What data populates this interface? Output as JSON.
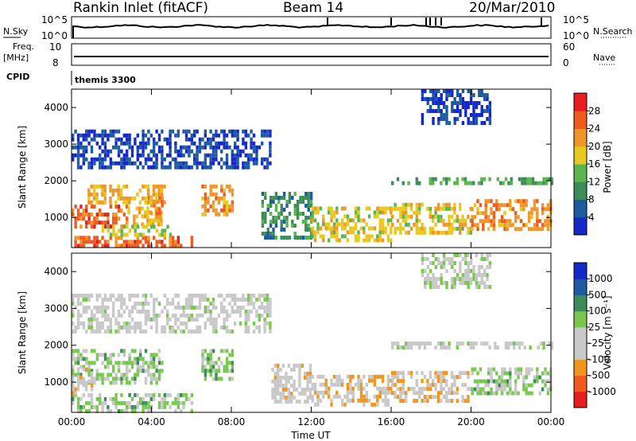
{
  "header": {
    "station": "Rankin Inlet (fitACF)",
    "beam": "Beam 14",
    "date": "20/Mar/2010"
  },
  "panels": {
    "nsky_label": "N.Sky",
    "nsearch_label": "N.Search",
    "nsky_ticks": [
      "10^5",
      "10^0"
    ],
    "nsearch_ticks": [
      "10^5",
      "10^0"
    ],
    "freq_label": "Freq.",
    "freq_unit": "[MHz]",
    "freq_ticks": [
      "10",
      "8"
    ],
    "nave_label": "Nave",
    "nave_ticks": [
      "60",
      "0"
    ],
    "cpid_label": "CPID",
    "cpid_value": "themis 3300"
  },
  "colors": {
    "power_scale": [
      "#1428c8",
      "#1e5aa0",
      "#3c8c5a",
      "#5ab450",
      "#e6c81e",
      "#f09628",
      "#f05a1e",
      "#e61e1e"
    ],
    "velocity_scale": [
      "#e61e1e",
      "#f05a1e",
      "#f0961e",
      "#c8c8c8",
      "#c8c8c8",
      "#78c850",
      "#3c8c5a",
      "#1e5aa0",
      "#1428c8"
    ]
  },
  "chart_data": [
    {
      "type": "heatmap",
      "title": "Power",
      "ylabel": "Slant Range [km]",
      "xlabel": "",
      "x_ticks": [
        "00:00",
        "04:00",
        "08:00",
        "12:00",
        "16:00",
        "20:00",
        "00:00"
      ],
      "y_ticks": [
        "1000",
        "2000",
        "3000",
        "4000"
      ],
      "ylim": [
        180,
        4500
      ],
      "xlim_hours": [
        0,
        24
      ],
      "colorbar_label": "Power [dB]",
      "colorbar_ticks": [
        "4",
        "8",
        "12",
        "16",
        "20",
        "24",
        "28"
      ],
      "colorbar_range": [
        0,
        32
      ],
      "regions": [
        {
          "t": [
            0.0,
            2.8
          ],
          "r": [
            700,
            1350
          ],
          "value": 26
        },
        {
          "t": [
            2.8,
            4.5
          ],
          "r": [
            800,
            1300
          ],
          "value": 20
        },
        {
          "t": [
            3.8,
            4.6
          ],
          "r": [
            1000,
            1600
          ],
          "value": 24
        },
        {
          "t": [
            0.8,
            4.6
          ],
          "r": [
            1400,
            1900
          ],
          "value": 20
        },
        {
          "t": [
            0.0,
            6.0
          ],
          "r": [
            180,
            500
          ],
          "value": 26
        },
        {
          "t": [
            1.5,
            5.0
          ],
          "r": [
            500,
            800
          ],
          "value": 16
        },
        {
          "t": [
            6.5,
            8.0
          ],
          "r": [
            1100,
            1900
          ],
          "value": 22
        },
        {
          "t": [
            9.5,
            12.0
          ],
          "r": [
            400,
            1700
          ],
          "value": 10
        },
        {
          "t": [
            12.0,
            16.0
          ],
          "r": [
            400,
            1300
          ],
          "value": 18
        },
        {
          "t": [
            16.0,
            20.0
          ],
          "r": [
            600,
            1400
          ],
          "value": 18
        },
        {
          "t": [
            20.0,
            24.0
          ],
          "r": [
            700,
            1500
          ],
          "value": 22
        },
        {
          "t": [
            16.0,
            24.0
          ],
          "r": [
            1900,
            2100
          ],
          "value": 12
        },
        {
          "t": [
            0.0,
            10.0
          ],
          "r": [
            2400,
            3400
          ],
          "value": 4
        },
        {
          "t": [
            17.5,
            21.0
          ],
          "r": [
            3600,
            4500
          ],
          "value": 4
        }
      ]
    },
    {
      "type": "heatmap",
      "title": "Velocity",
      "ylabel": "Slant Range [km]",
      "xlabel": "Time UT",
      "x_ticks": [
        "00:00",
        "04:00",
        "08:00",
        "12:00",
        "16:00",
        "20:00",
        "00:00"
      ],
      "y_ticks": [
        "1000",
        "2000",
        "3000",
        "4000"
      ],
      "ylim": [
        180,
        4500
      ],
      "xlim_hours": [
        0,
        24
      ],
      "colorbar_label": "Velocity [m s⁻¹]",
      "colorbar_ticks": [
        "1000",
        "500",
        "100",
        "25",
        "-25",
        "-100",
        "-500",
        "-1000"
      ],
      "colorbar_range": [
        -1000,
        1000
      ],
      "regions": [
        {
          "t": [
            0.0,
            4.5
          ],
          "r": [
            1000,
            1900
          ],
          "value": 150
        },
        {
          "t": [
            0.0,
            6.0
          ],
          "r": [
            180,
            700
          ],
          "value": 150
        },
        {
          "t": [
            0.0,
            1.0
          ],
          "r": [
            700,
            1400
          ],
          "value": -200
        },
        {
          "t": [
            6.5,
            8.0
          ],
          "r": [
            1100,
            1900
          ],
          "value": 200
        },
        {
          "t": [
            10.0,
            12.0
          ],
          "r": [
            500,
            1500
          ],
          "value": -150
        },
        {
          "t": [
            12.0,
            16.0
          ],
          "r": [
            400,
            1200
          ],
          "value": -250
        },
        {
          "t": [
            16.0,
            20.0
          ],
          "r": [
            500,
            1300
          ],
          "value": -250
        },
        {
          "t": [
            20.0,
            24.0
          ],
          "r": [
            700,
            1400
          ],
          "value": 150
        },
        {
          "t": [
            16.0,
            24.0
          ],
          "r": [
            1900,
            2100
          ],
          "value": 0
        },
        {
          "t": [
            0.0,
            10.0
          ],
          "r": [
            2400,
            3400
          ],
          "value": -50
        },
        {
          "t": [
            17.5,
            21.0
          ],
          "r": [
            3600,
            4500
          ],
          "value": 50
        }
      ]
    }
  ]
}
